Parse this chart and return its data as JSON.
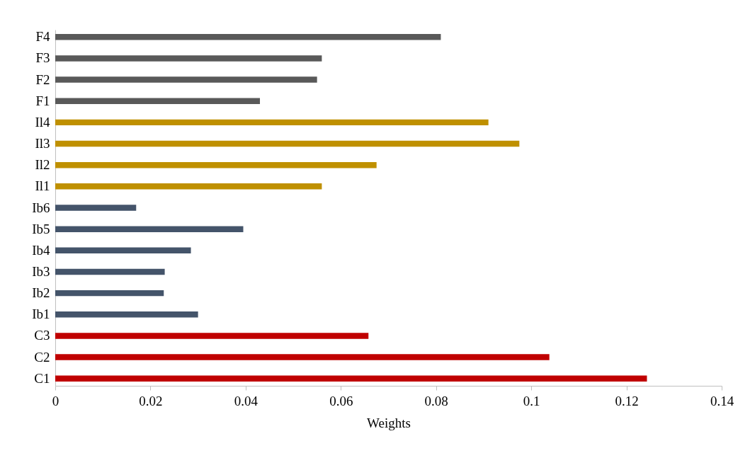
{
  "chart_data": {
    "type": "bar",
    "orientation": "horizontal",
    "xlabel": "Weights",
    "categories": [
      "F4",
      "F3",
      "F2",
      "F1",
      "Il4",
      "Il3",
      "Il2",
      "Il1",
      "Ib6",
      "Ib5",
      "Ib4",
      "Ib3",
      "Ib2",
      "Ib1",
      "C3",
      "C2",
      "C1"
    ],
    "values": [
      0.081,
      0.056,
      0.055,
      0.043,
      0.091,
      0.0975,
      0.0675,
      0.056,
      0.017,
      0.0395,
      0.0285,
      0.023,
      0.0228,
      0.03,
      0.0658,
      0.1038,
      0.1243
    ],
    "colors": [
      "#595959",
      "#595959",
      "#595959",
      "#595959",
      "#bf9000",
      "#bf9000",
      "#bf9000",
      "#bf9000",
      "#44546a",
      "#44546a",
      "#44546a",
      "#44546a",
      "#44546a",
      "#44546a",
      "#c00000",
      "#c00000",
      "#c00000"
    ],
    "xlim": [
      0,
      0.14
    ],
    "xticks": [
      0,
      0.02,
      0.04,
      0.06,
      0.08,
      0.1,
      0.12,
      0.14
    ],
    "grid": false
  }
}
